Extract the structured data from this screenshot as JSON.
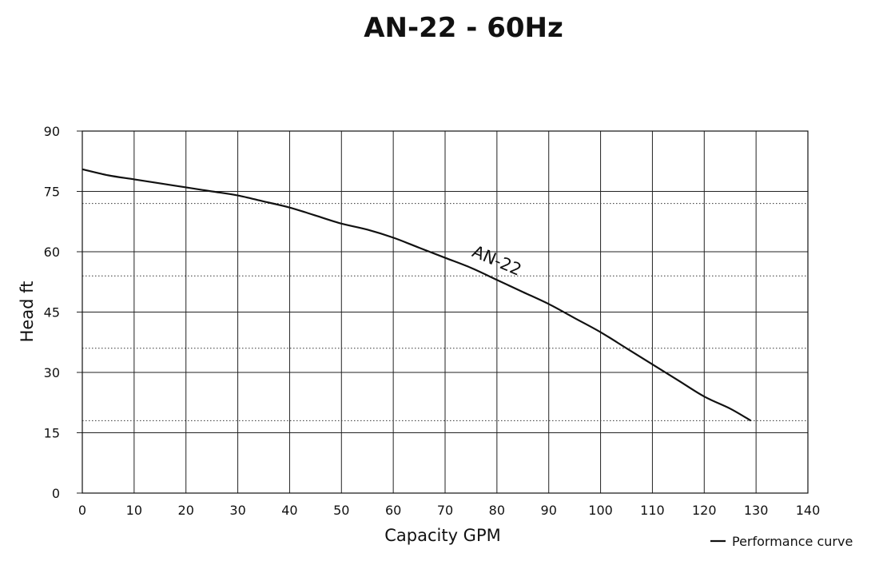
{
  "chart_data": {
    "type": "line",
    "title": "AN-22 - 60Hz",
    "xlabel": "Capacity GPM",
    "ylabel": "Head ft",
    "xlim": [
      0,
      140
    ],
    "ylim": [
      0,
      90
    ],
    "xticks": [
      "0",
      "10",
      "20",
      "30",
      "40",
      "50",
      "60",
      "70",
      "80",
      "90",
      "100",
      "110",
      "120",
      "130",
      "140"
    ],
    "yticks": [
      "0",
      "15",
      "30",
      "45",
      "60",
      "75",
      "90"
    ],
    "grid": true,
    "reference_lines_dotted": [
      18,
      36,
      54,
      72
    ],
    "series": [
      {
        "name": "AN-22",
        "x": [
          0,
          5,
          10,
          15,
          20,
          25,
          30,
          35,
          40,
          45,
          50,
          55,
          60,
          65,
          70,
          75,
          80,
          85,
          90,
          95,
          100,
          105,
          110,
          115,
          120,
          125,
          129
        ],
        "y": [
          80.5,
          79,
          78,
          77,
          76,
          75,
          74,
          72.5,
          71,
          69,
          67,
          65.5,
          63.5,
          61,
          58.5,
          56,
          53,
          50,
          47,
          43.5,
          40,
          36,
          32,
          28,
          24,
          21,
          18
        ]
      }
    ],
    "curve_label": "AN-22",
    "legend": {
      "position": "bottom-right",
      "label": "Performance curve"
    }
  }
}
